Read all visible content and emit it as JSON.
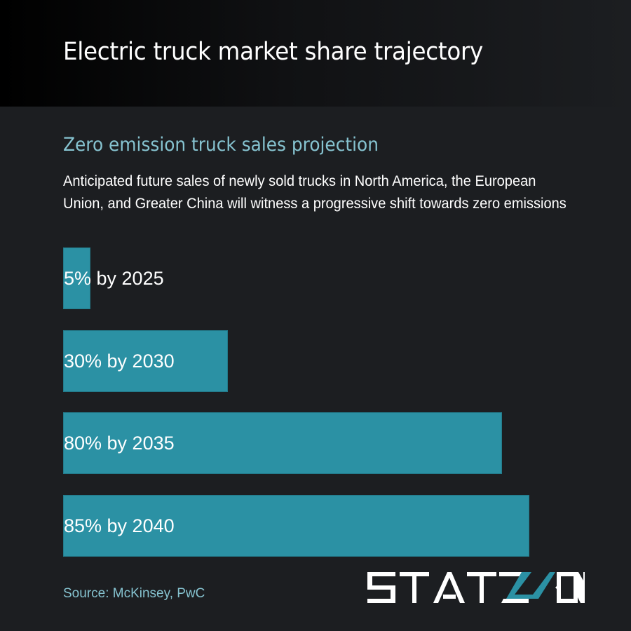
{
  "header": {
    "title": "Electric truck market share trajectory"
  },
  "subtitle": "Zero emission truck sales projection",
  "description": "Anticipated future sales of newly sold trucks in North America, the European Union, and Greater China will witness a progressive shift towards zero emissions",
  "bars": [
    {
      "label": "5% by 2025",
      "value": 5
    },
    {
      "label": "30% by 2030",
      "value": 30
    },
    {
      "label": "80% by 2035",
      "value": 80
    },
    {
      "label": "85% by 2040",
      "value": 85
    }
  ],
  "source": "Source: McKinsey, PwC",
  "logo": {
    "text": "STATZON",
    "accent_color": "#2b91a4"
  },
  "colors": {
    "bar": "#2b91a4",
    "background": "#1c1e21",
    "accent_text": "#86c3d0"
  },
  "chart_data": {
    "type": "bar",
    "orientation": "horizontal",
    "title": "Zero emission truck sales projection",
    "subtitle": "Anticipated future sales of newly sold trucks in North America, the European Union, and Greater China will witness a progressive shift towards zero emissions",
    "categories": [
      "2025",
      "2030",
      "2035",
      "2040"
    ],
    "values": [
      5,
      30,
      80,
      85
    ],
    "data_labels": [
      "5% by 2025",
      "30% by 2030",
      "80% by 2035",
      "85% by 2040"
    ],
    "unit": "%",
    "xlabel": "",
    "ylabel": "",
    "xlim": [
      0,
      100
    ],
    "grid": false,
    "legend": null,
    "source": "Source: McKinsey, PwC"
  }
}
